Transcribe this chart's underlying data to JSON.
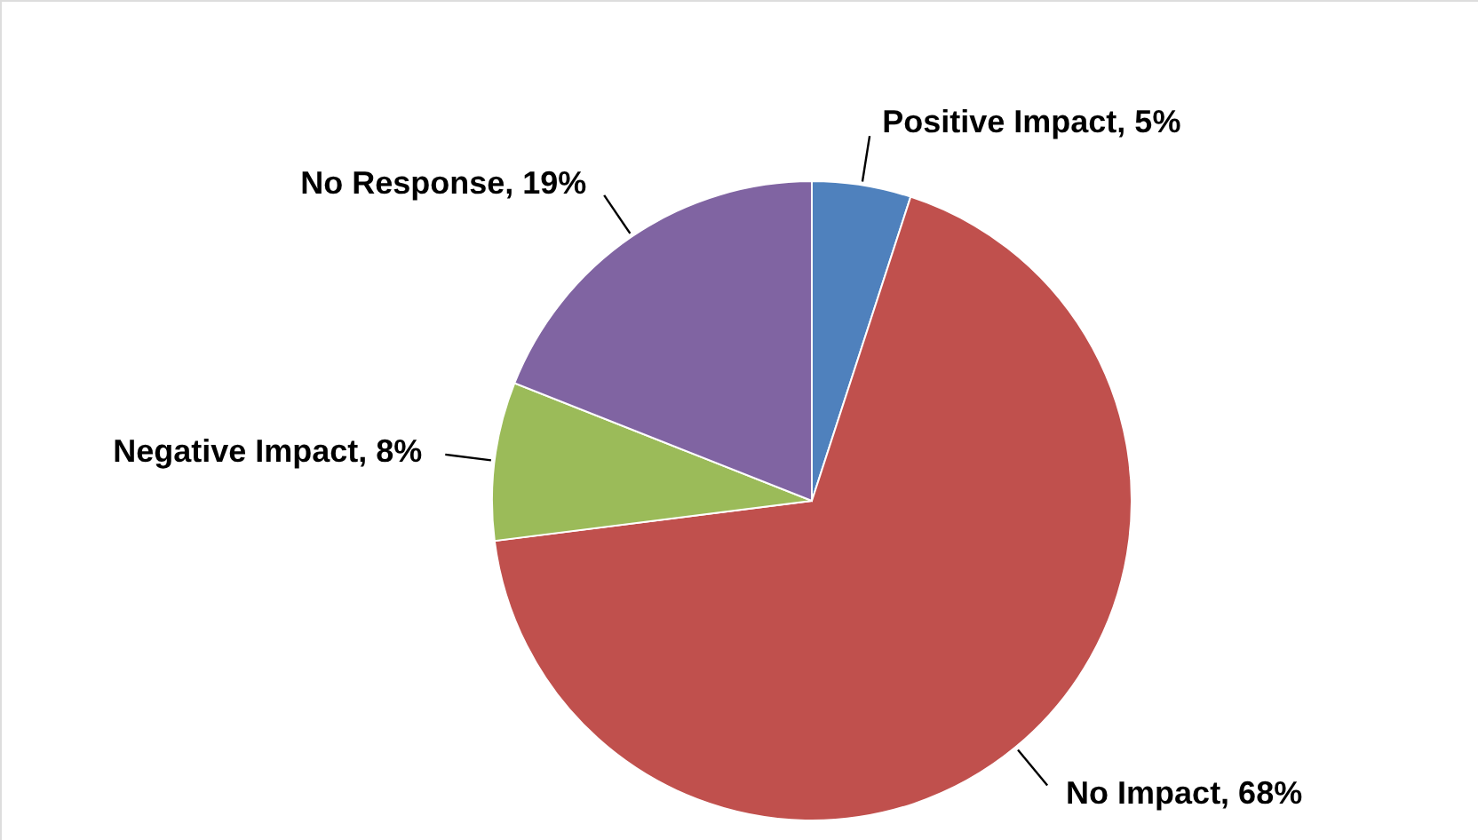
{
  "chart_data": {
    "type": "pie",
    "categories": [
      "Positive Impact",
      "No Impact",
      "Negative Impact",
      "No Response"
    ],
    "values": [
      5,
      68,
      8,
      19
    ],
    "value_labels": [
      "5%",
      "68%",
      "8%",
      "19%"
    ],
    "colors": [
      "#4f81bd",
      "#c0504d",
      "#9bbb59",
      "#8064a2"
    ]
  }
}
